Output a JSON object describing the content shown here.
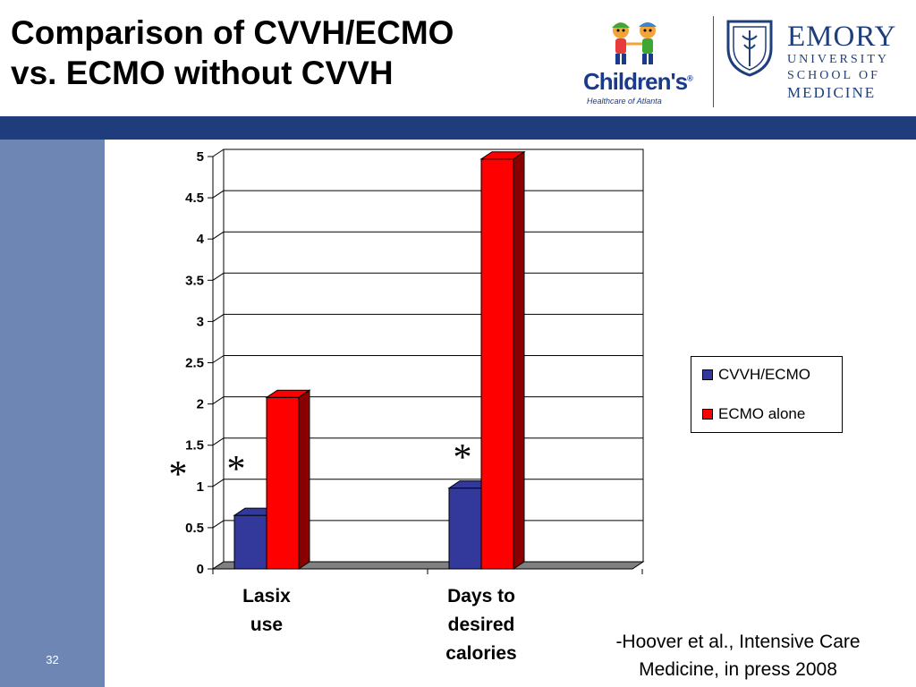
{
  "slide": {
    "title_line1": "Comparison of CVVH/ECMO",
    "title_line2": "vs. ECMO without CVVH",
    "slide_number": "32",
    "citation_line1": "-Hoover et al., Intensive Care",
    "citation_line2": "Medicine, in press 2008"
  },
  "logos": {
    "childrens_name": "Children's",
    "childrens_registered": "®",
    "childrens_tagline": "Healthcare of Atlanta",
    "emory_name": "EMORY",
    "emory_line1": "UNIVERSITY",
    "emory_line2": "SCHOOL OF",
    "emory_line3": "MEDICINE"
  },
  "colors": {
    "header_bar": "#1f3d7c",
    "side_bar": "#6d86b4",
    "cvvh_ecmo": "#33399b",
    "ecmo_alone": "#ff0000"
  },
  "chart_data": {
    "type": "bar",
    "categories": [
      [
        "Lasix",
        "use"
      ],
      [
        "Days to",
        "desired",
        "calories"
      ]
    ],
    "series": [
      {
        "name": "CVVH/ECMO",
        "values": [
          0.65,
          0.98
        ],
        "color": "#33399b",
        "side_color": "#1a1d5c"
      },
      {
        "name": "ECMO alone",
        "values": [
          2.08,
          4.97
        ],
        "color": "#ff0000",
        "side_color": "#8a0000"
      }
    ],
    "ylim": [
      0,
      5
    ],
    "yticks": [
      "0",
      "0.5",
      "1",
      "1.5",
      "2",
      "2.5",
      "3",
      "3.5",
      "4",
      "4.5",
      "5"
    ],
    "grid": true,
    "legend_position": "right",
    "annotations": [
      "*",
      "*",
      "*"
    ]
  }
}
